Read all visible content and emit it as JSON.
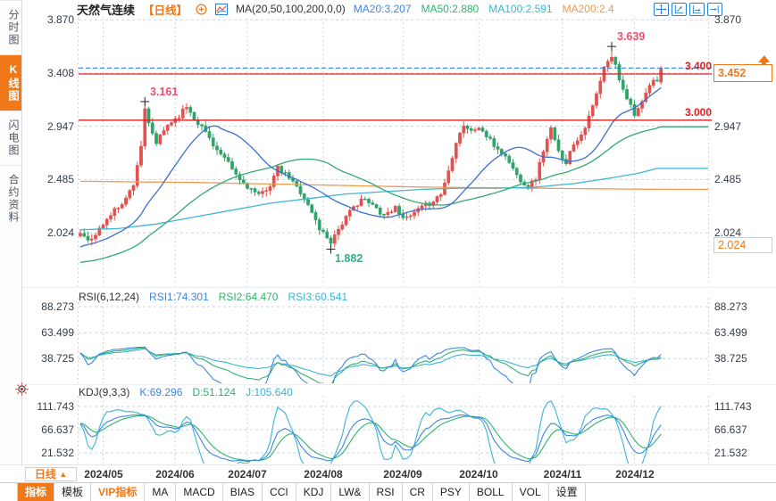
{
  "colors": {
    "accent": "#f07818",
    "up": "#e2514e",
    "down": "#2fa36a",
    "ma20": "#3b6fd0",
    "ma50": "#33a873",
    "ma100": "#3fb6d8",
    "ma200": "#f09a50",
    "alert_line": "#e02020",
    "current_line": "#2f81dd",
    "grid": "#ccd6de",
    "rsi1": "#3e86e0",
    "rsi2": "#2fb36c",
    "rsi3": "#3ab4d6"
  },
  "sidebar": {
    "items": [
      {
        "label": "分时图",
        "active": false
      },
      {
        "label": "K线图",
        "active": true
      },
      {
        "label": "闪电图",
        "active": false
      },
      {
        "label": "合约资料",
        "active": false
      }
    ]
  },
  "header": {
    "title": "天然气连续",
    "period_tag": "【日线】",
    "ma_label": "MA(20,50,100,200,0,0)",
    "ma_values": [
      {
        "label": "MA20:3.207",
        "color": "#3e86e0"
      },
      {
        "label": "MA50:2.880",
        "color": "#2fb36c"
      },
      {
        "label": "MA100:2.591",
        "color": "#3ab4d6"
      },
      {
        "label": "MA200:2.4",
        "color": "#f09a50"
      }
    ]
  },
  "toolbar_icons": [
    {
      "name": "pan-crosshair-icon"
    },
    {
      "name": "price-scale-icon"
    },
    {
      "name": "time-scale-icon"
    },
    {
      "name": "goto-latest-icon"
    }
  ],
  "main_axis": {
    "ticks": [
      {
        "label": "3.870",
        "value": 3.87
      },
      {
        "label": "3.408",
        "value": 3.408
      },
      {
        "label": "2.947",
        "value": 2.947
      },
      {
        "label": "2.485",
        "value": 2.485
      },
      {
        "label": "2.024",
        "value": 2.024
      }
    ]
  },
  "rsi": {
    "title": "RSI(6,12,24)",
    "values": [
      {
        "label": "RSI1:74.301",
        "color": "#3e86e0"
      },
      {
        "label": "RSI2:64.470",
        "color": "#2fb36c"
      },
      {
        "label": "RSI3:60.541",
        "color": "#3ab4d6"
      }
    ],
    "ticks": [
      {
        "label": "88.273",
        "value": 88.273
      },
      {
        "label": "63.499",
        "value": 63.499
      },
      {
        "label": "38.725",
        "value": 38.725
      }
    ]
  },
  "kdj": {
    "title": "KDJ(9,3,3)",
    "values": [
      {
        "label": "K:69.296",
        "color": "#3e86e0"
      },
      {
        "label": "D:51.124",
        "color": "#2fb36c"
      },
      {
        "label": "J:105.640",
        "color": "#3ab4d6"
      }
    ],
    "ticks": [
      {
        "label": "111.743",
        "value": 111.743
      },
      {
        "label": "66.637",
        "value": 66.637
      },
      {
        "label": "21.532",
        "value": 21.532
      }
    ]
  },
  "x_axis": {
    "period_label": "日线",
    "period_arrow": "▲",
    "months": [
      {
        "label": "2024/05",
        "d": 6
      },
      {
        "label": "2024/06",
        "d": 25
      },
      {
        "label": "2024/07",
        "d": 44
      },
      {
        "label": "2024/08",
        "d": 64
      },
      {
        "label": "2024/09",
        "d": 85
      },
      {
        "label": "2024/10",
        "d": 105
      },
      {
        "label": "2024/11",
        "d": 127
      },
      {
        "label": "2024/12",
        "d": 146
      }
    ]
  },
  "bottom_tabs": [
    {
      "label": "指标",
      "style": "active"
    },
    {
      "label": "模板",
      "style": ""
    },
    {
      "label": "VIP指标",
      "style": "vip"
    },
    {
      "label": "MA",
      "style": ""
    },
    {
      "label": "MACD",
      "style": ""
    },
    {
      "label": "BIAS",
      "style": ""
    },
    {
      "label": "CCI",
      "style": ""
    },
    {
      "label": "KDJ",
      "style": ""
    },
    {
      "label": "LW&",
      "style": ""
    },
    {
      "label": "RSI",
      "style": ""
    },
    {
      "label": "CR",
      "style": ""
    },
    {
      "label": "PSY",
      "style": ""
    },
    {
      "label": "BOLL",
      "style": ""
    },
    {
      "label": "VOL",
      "style": ""
    },
    {
      "label": "设置",
      "style": ""
    }
  ],
  "chart_data": {
    "type": "candlestick+indicators",
    "instrument": "天然气连续",
    "period": "日线",
    "visible_days": 154,
    "price_axis_ticks": [
      3.87,
      3.408,
      2.947,
      2.485,
      2.024
    ],
    "price_path": [
      [
        -60,
        1.8
      ],
      [
        -50,
        1.74
      ],
      [
        -40,
        1.68
      ],
      [
        -30,
        1.62
      ],
      [
        -22,
        1.7
      ],
      [
        -15,
        1.85
      ],
      [
        -8,
        1.92
      ],
      [
        -1,
        2.0
      ],
      [
        0,
        2.02
      ],
      [
        3,
        1.96
      ],
      [
        6,
        2.1
      ],
      [
        9,
        2.22
      ],
      [
        12,
        2.32
      ],
      [
        14,
        2.45
      ],
      [
        16,
        2.78
      ],
      [
        17,
        3.08
      ],
      [
        18,
        2.96
      ],
      [
        20,
        2.8
      ],
      [
        23,
        2.96
      ],
      [
        26,
        3.04
      ],
      [
        28,
        3.12
      ],
      [
        30,
        3.02
      ],
      [
        33,
        2.9
      ],
      [
        36,
        2.74
      ],
      [
        39,
        2.62
      ],
      [
        42,
        2.48
      ],
      [
        45,
        2.4
      ],
      [
        47,
        2.34
      ],
      [
        50,
        2.44
      ],
      [
        52,
        2.58
      ],
      [
        55,
        2.5
      ],
      [
        58,
        2.38
      ],
      [
        61,
        2.2
      ],
      [
        63,
        2.06
      ],
      [
        66,
        1.95
      ],
      [
        68,
        2.06
      ],
      [
        71,
        2.2
      ],
      [
        74,
        2.32
      ],
      [
        77,
        2.26
      ],
      [
        80,
        2.18
      ],
      [
        83,
        2.24
      ],
      [
        86,
        2.14
      ],
      [
        89,
        2.22
      ],
      [
        92,
        2.28
      ],
      [
        95,
        2.36
      ],
      [
        97,
        2.56
      ],
      [
        99,
        2.82
      ],
      [
        101,
        2.96
      ],
      [
        103,
        2.9
      ],
      [
        105,
        2.94
      ],
      [
        107,
        2.86
      ],
      [
        109,
        2.78
      ],
      [
        111,
        2.72
      ],
      [
        113,
        2.64
      ],
      [
        115,
        2.52
      ],
      [
        118,
        2.42
      ],
      [
        120,
        2.5
      ],
      [
        122,
        2.74
      ],
      [
        124,
        2.92
      ],
      [
        126,
        2.72
      ],
      [
        128,
        2.64
      ],
      [
        130,
        2.8
      ],
      [
        132,
        2.88
      ],
      [
        134,
        3.02
      ],
      [
        136,
        3.22
      ],
      [
        138,
        3.45
      ],
      [
        140,
        3.55
      ],
      [
        141,
        3.47
      ],
      [
        142,
        3.36
      ],
      [
        144,
        3.2
      ],
      [
        146,
        3.06
      ],
      [
        148,
        3.14
      ],
      [
        150,
        3.3
      ],
      [
        152,
        3.36
      ],
      [
        153,
        3.452
      ]
    ],
    "key_points": {
      "first_peak": {
        "day": 17,
        "high": 3.161
      },
      "trough": {
        "day": 66,
        "low": 1.882
      },
      "top": {
        "day": 140,
        "high": 3.639
      },
      "last": {
        "day": 153,
        "open": 3.33,
        "close": 3.452,
        "high": 3.468,
        "low": 3.31
      }
    },
    "ma_final": {
      "ma20": 3.207,
      "ma50": 2.88,
      "ma100": 2.591,
      "ma200": 2.4
    },
    "ma100_path": [
      [
        0,
        2.05
      ],
      [
        10,
        2.06
      ],
      [
        20,
        2.1
      ],
      [
        30,
        2.16
      ],
      [
        40,
        2.22
      ],
      [
        50,
        2.28
      ],
      [
        60,
        2.32
      ],
      [
        70,
        2.36
      ],
      [
        80,
        2.38
      ],
      [
        90,
        2.4
      ],
      [
        100,
        2.41
      ],
      [
        110,
        2.41
      ],
      [
        120,
        2.42
      ],
      [
        130,
        2.45
      ],
      [
        140,
        2.5
      ],
      [
        147,
        2.54
      ],
      [
        153,
        2.59
      ]
    ],
    "ma200_path": [
      [
        0,
        2.47
      ],
      [
        30,
        2.46
      ],
      [
        60,
        2.44
      ],
      [
        90,
        2.42
      ],
      [
        120,
        2.41
      ],
      [
        153,
        2.4
      ]
    ],
    "horizontal_lines": [
      {
        "price": 3.4,
        "label": "3.400"
      },
      {
        "price": 3.0,
        "label": "3.000"
      }
    ],
    "current_price": {
      "value": 3.452,
      "label": "3.452"
    },
    "low_marker": {
      "value": 2.024,
      "label": "2.024"
    },
    "annotations": [
      {
        "day": 17,
        "price": 3.161,
        "label": "3.161",
        "color": "#e8506e",
        "pos": "above"
      },
      {
        "day": 140,
        "price": 3.639,
        "label": "3.639",
        "color": "#e8506e",
        "pos": "above"
      },
      {
        "day": 66,
        "price": 1.882,
        "label": "1.882",
        "color": "#2fae8a",
        "pos": "below"
      }
    ],
    "rsi": {
      "params": [
        6,
        12,
        24
      ],
      "last": [
        74.301,
        64.47,
        60.541
      ]
    },
    "kdj": {
      "params": [
        9,
        3,
        3
      ],
      "last": [
        69.296,
        51.124,
        105.64
      ]
    }
  }
}
